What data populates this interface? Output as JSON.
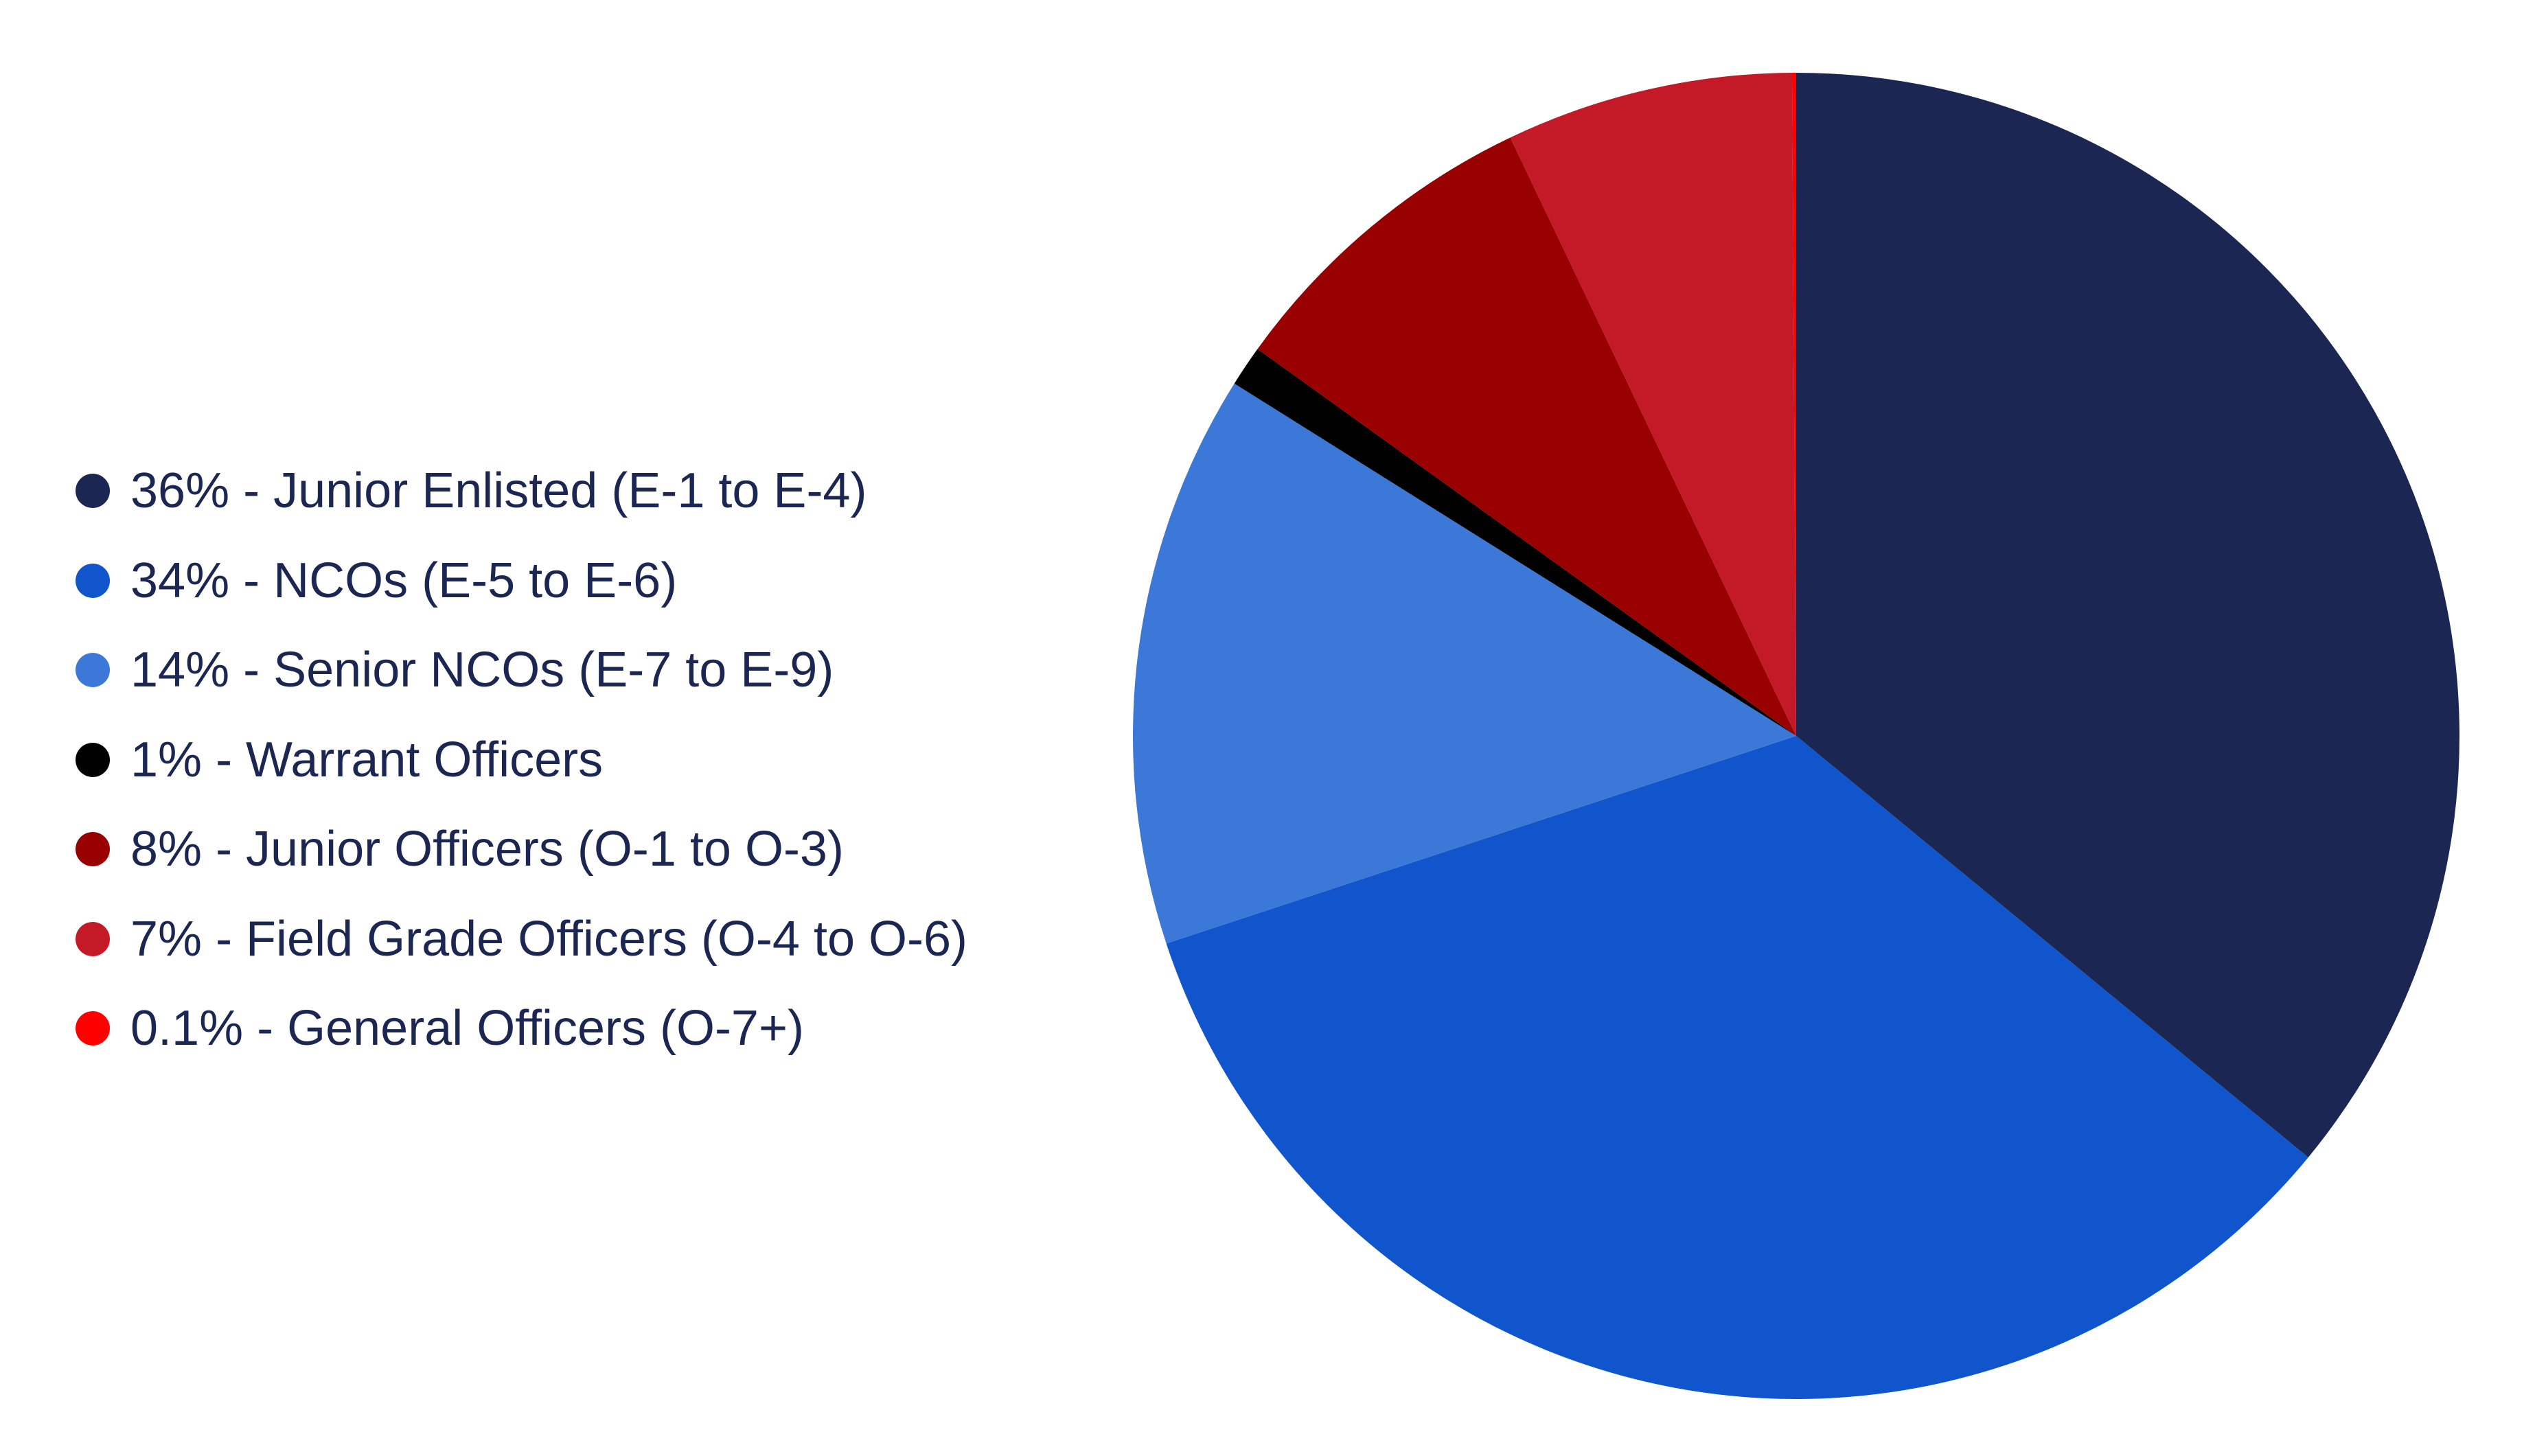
{
  "chart_data": {
    "type": "pie",
    "start_angle": "12 o'clock",
    "direction": "clockwise",
    "legend_position": "left",
    "slices": [
      {
        "label": "36% - Junior Enlisted (E-1 to E-4)",
        "value": 36,
        "color": "#1b2752"
      },
      {
        "label": "34% - NCOs (E-5 to E-6)",
        "value": 34,
        "color": "#1155cc"
      },
      {
        "label": "14% - Senior NCOs (E-7 to E-9)",
        "value": 14,
        "color": "#3c78d8"
      },
      {
        "label": "1% - Warrant Officers",
        "value": 1,
        "color": "#000000"
      },
      {
        "label": "8% - Junior Officers (O-1 to O-3)",
        "value": 8,
        "color": "#990000"
      },
      {
        "label": "7% - Field Grade Officers (O-4 to O-6)",
        "value": 7,
        "color": "#c41a28"
      },
      {
        "label": "0.1% - General Officers (O-7+)",
        "value": 0.1,
        "color": "#ff0000"
      }
    ]
  }
}
